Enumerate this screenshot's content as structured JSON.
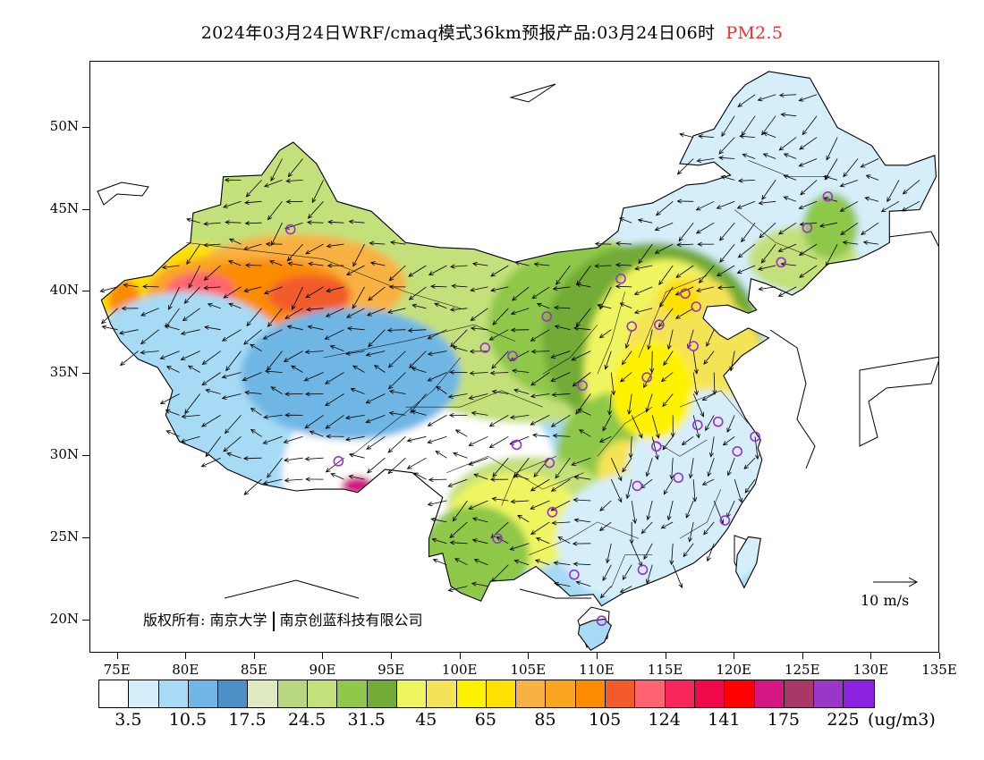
{
  "title": {
    "main": "2024年03月24日WRF/cmaq模式36km预报产品:03月24日06时",
    "pollutant": "PM2.5",
    "pollutant_color": "#ff2a2a"
  },
  "map": {
    "lat_labels": [
      "50N",
      "45N",
      "40N",
      "35N",
      "30N",
      "25N",
      "20N"
    ],
    "lon_labels": [
      "75E",
      "80E",
      "85E",
      "90E",
      "95E",
      "100E",
      "105E",
      "110E",
      "115E",
      "120E",
      "125E",
      "130E",
      "135E"
    ],
    "lat_range": [
      18,
      54
    ],
    "lon_range": [
      73,
      135
    ],
    "copyright_label": "版权所有:",
    "copyright_org1": "南京大学",
    "copyright_org2": "南京创蓝科技有限公司",
    "wind_reference": "10 m/s",
    "station_marker_color": "#9b30d0",
    "station_markers_lonlat": [
      [
        126.8,
        45.8
      ],
      [
        125.3,
        43.9
      ],
      [
        123.4,
        41.8
      ],
      [
        116.4,
        39.9
      ],
      [
        117.2,
        39.1
      ],
      [
        114.5,
        38.0
      ],
      [
        112.5,
        37.9
      ],
      [
        111.7,
        40.8
      ],
      [
        106.3,
        38.5
      ],
      [
        103.8,
        36.1
      ],
      [
        101.8,
        36.6
      ],
      [
        87.6,
        43.8
      ],
      [
        117.0,
        36.7
      ],
      [
        113.6,
        34.8
      ],
      [
        108.9,
        34.3
      ],
      [
        104.1,
        30.7
      ],
      [
        106.5,
        29.6
      ],
      [
        114.3,
        30.6
      ],
      [
        117.3,
        31.9
      ],
      [
        118.8,
        32.1
      ],
      [
        121.5,
        31.2
      ],
      [
        120.2,
        30.3
      ],
      [
        112.9,
        28.2
      ],
      [
        115.9,
        28.7
      ],
      [
        119.3,
        26.1
      ],
      [
        106.7,
        26.6
      ],
      [
        102.7,
        25.0
      ],
      [
        108.3,
        22.8
      ],
      [
        113.3,
        23.1
      ],
      [
        110.3,
        20.0
      ],
      [
        91.1,
        29.7
      ]
    ]
  },
  "legend": {
    "colors": [
      "#ffffff",
      "#d6eefa",
      "#a6daf5",
      "#6fb6e4",
      "#4d90c8",
      "#dfeac0",
      "#b9d77e",
      "#c4e07a",
      "#8fc84a",
      "#72ab35",
      "#eef560",
      "#f5e357",
      "#fff200",
      "#ffe000",
      "#f8b143",
      "#f9a520",
      "#fb8b00",
      "#f25c2a",
      "#fe6570",
      "#f7255a",
      "#f0084a",
      "#ff0000",
      "#d41682",
      "#a93866",
      "#9a36c8",
      "#8a22e0"
    ],
    "labels": [
      "3.5",
      "10.5",
      "17.5",
      "24.5",
      "31.5",
      "45",
      "65",
      "85",
      "105",
      "124",
      "141",
      "175",
      "225"
    ],
    "unit": "(ug/m3)"
  }
}
